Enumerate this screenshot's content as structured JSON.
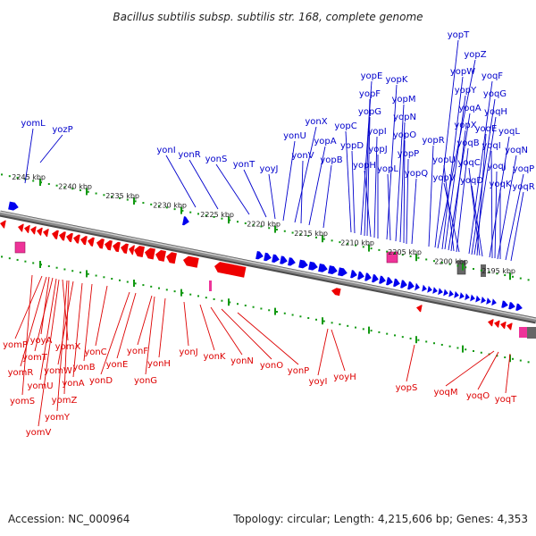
{
  "title": "Bacillus subtilis subsp. subtilis str. 168, complete genome",
  "footer": {
    "accession": "Accession: NC_000964",
    "summary": "Topology: circular; Length: 4,215,606 bp; Genes: 4,353"
  },
  "colors": {
    "forward_gene": "#0000ee",
    "reverse_gene": "#ee0000",
    "forward_label": "#0000cc",
    "reverse_label": "#dd0000",
    "rna_gene": "#ee3399",
    "pseudo_gene": "#666666",
    "backbone": "#8a8a8a",
    "tick": "#119911"
  },
  "scale_ticks": [
    "2245 kbp",
    "2240 kbp",
    "2235 kbp",
    "2230 kbp",
    "2225 kbp",
    "2220 kbp",
    "2215 kbp",
    "2210 kbp",
    "2205 kbp",
    "2200 kbp",
    "2195 kbp"
  ],
  "forward_labels": [
    "yomL",
    "yozP",
    "yonI",
    "yonR",
    "yonS",
    "yonT",
    "yoyJ",
    "yonU",
    "yonX",
    "yonV",
    "yopA",
    "yopB",
    "yopC",
    "yopD",
    "yopE",
    "yopF",
    "yopG",
    "yopH",
    "yopI",
    "yopJ",
    "yopK",
    "yopL",
    "yopM",
    "yopN",
    "yopO",
    "yopP",
    "yopQ",
    "yopR",
    "yopT",
    "yopZ",
    "yopW",
    "yopY",
    "yoqA",
    "yopX",
    "yopU",
    "yoqB",
    "yopV",
    "yoqF",
    "yoqG",
    "yoqH",
    "yoqE",
    "yoqC",
    "yoqD",
    "yoqL",
    "yoqI",
    "yoqJ",
    "yoqN",
    "yoqK",
    "yoqP",
    "yoqR"
  ],
  "reverse_labels": [
    "yomP",
    "yoyA",
    "yomT",
    "yomX",
    "yomR",
    "yomW",
    "yomU",
    "yonA",
    "yonB",
    "yonC",
    "yonD",
    "yonE",
    "yonF",
    "yonG",
    "yonH",
    "yonJ",
    "yonK",
    "yonN",
    "yonO",
    "yonP",
    "yoyI",
    "yoyH",
    "yopS",
    "yoqM",
    "yoqO",
    "yoqT",
    "yomS",
    "yomZ",
    "yomY",
    "yomV"
  ]
}
